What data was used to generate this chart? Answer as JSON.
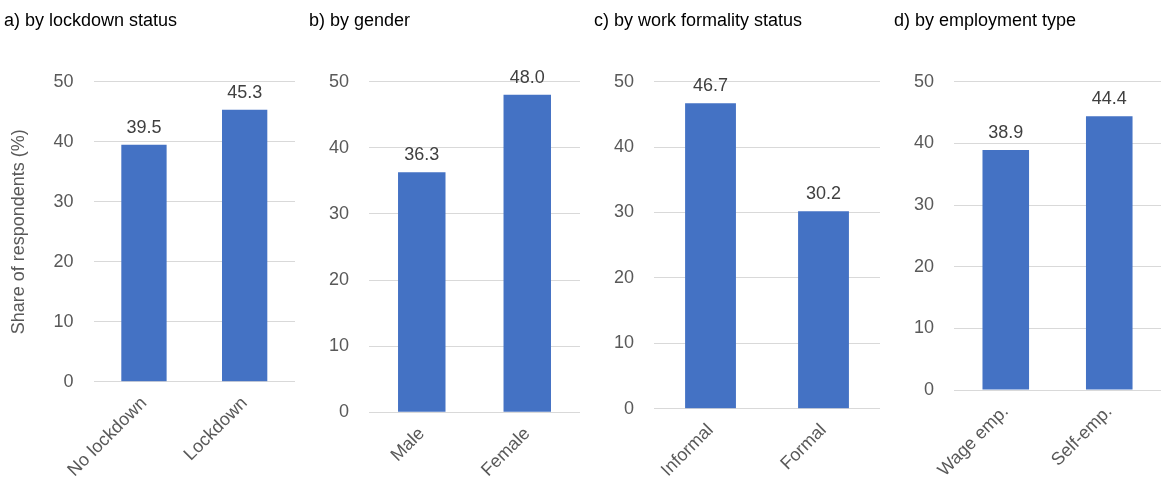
{
  "chart_data": [
    {
      "type": "bar",
      "title": "a) by lockdown status",
      "ylabel": "Share of respondents (%)",
      "categories": [
        "No lockdown",
        "Lockdown"
      ],
      "values": [
        39.5,
        45.3
      ],
      "value_labels": [
        "39.5",
        "45.3"
      ],
      "color": "#4472c4",
      "ylim": [
        0,
        50
      ],
      "yticks": [
        0,
        10,
        20,
        30,
        40,
        50
      ],
      "grid": "y"
    },
    {
      "type": "bar",
      "title": "b) by gender",
      "categories": [
        "Male",
        "Female"
      ],
      "values": [
        36.3,
        48.0
      ],
      "value_labels": [
        "36.3",
        "48.0"
      ],
      "color": "#4472c4",
      "ylim": [
        0,
        50
      ],
      "yticks": [
        0,
        10,
        20,
        30,
        40,
        50
      ],
      "grid": "y"
    },
    {
      "type": "bar",
      "title": "c) by work formality status",
      "categories": [
        "Informal",
        "Formal"
      ],
      "values": [
        46.7,
        30.2
      ],
      "value_labels": [
        "46.7",
        "30.2"
      ],
      "color": "#4472c4",
      "ylim": [
        0,
        50
      ],
      "yticks": [
        0,
        10,
        20,
        30,
        40,
        50
      ],
      "grid": "y"
    },
    {
      "type": "bar",
      "title": "d) by employment type",
      "categories": [
        "Wage emp.",
        "Self-emp."
      ],
      "values": [
        38.9,
        44.4
      ],
      "value_labels": [
        "38.9",
        "44.4"
      ],
      "color": "#4472c4",
      "ylim": [
        0,
        50
      ],
      "yticks": [
        0,
        10,
        20,
        30,
        40,
        50
      ],
      "grid": "y"
    }
  ]
}
